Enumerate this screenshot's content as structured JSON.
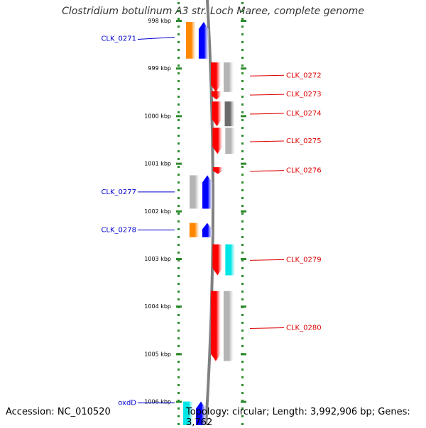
{
  "title": "Clostridium botulinum A3 str. Loch Maree, complete genome",
  "accession": "Accession: NC_010520",
  "summary": "Topology: circular; Length: 3,992,906 bp; Genes: 3,762",
  "colors": {
    "backbone": "#808080",
    "ticks": "#2e8b2e",
    "forward_label": "#0000cc",
    "reverse_label": "#dd0000",
    "red": "#ff0000",
    "blue": "#0000ff",
    "orange": "#ff8800",
    "cyan": "#00e5e5",
    "gray": "#b4b4b4",
    "darkgray": "#6b6b6b"
  },
  "scale_labels": [
    {
      "kbp": 998,
      "text": "998 kbp"
    },
    {
      "kbp": 999,
      "text": "999 kbp"
    },
    {
      "kbp": 1000,
      "text": "1000 kbp"
    },
    {
      "kbp": 1001,
      "text": "1001 kbp"
    },
    {
      "kbp": 1002,
      "text": "1002 kbp"
    },
    {
      "kbp": 1003,
      "text": "1003 kbp"
    },
    {
      "kbp": 1004,
      "text": "1004 kbp"
    },
    {
      "kbp": 1005,
      "text": "1005 kbp"
    },
    {
      "kbp": 1006,
      "text": "1006 kbp"
    }
  ],
  "forward_genes": [
    {
      "id": "CLK_0271",
      "start": 998.03,
      "end": 998.8,
      "cog": "orange",
      "pointer": 998.38
    },
    {
      "id": "CLK_0277",
      "start": 1001.25,
      "end": 1001.95,
      "cog": "gray",
      "pointer": 1001.6
    },
    {
      "id": "CLK_0278",
      "start": 1002.25,
      "end": 1002.55,
      "cog": "orange",
      "pointer": 1002.4
    },
    {
      "id": "oxdD",
      "start": 1006.0,
      "end": 1006.5,
      "cog": "cyan",
      "pointer": 1006.03
    }
  ],
  "reverse_genes": [
    {
      "id": "CLK_0272",
      "start": 998.88,
      "end": 999.5,
      "cog": "gray",
      "pointer": 999.15
    },
    {
      "id": "CLK_0273",
      "start": 999.48,
      "end": 999.66,
      "cog": "none",
      "pointer": 999.55
    },
    {
      "id": "CLK_0274",
      "start": 999.7,
      "end": 1000.22,
      "cog": "darkgray",
      "pointer": 999.95
    },
    {
      "id": "CLK_0275",
      "start": 1000.25,
      "end": 1000.8,
      "cog": "gray",
      "pointer": 1000.53
    },
    {
      "id": "CLK_0276",
      "start": 1001.08,
      "end": 1001.22,
      "cog": "none",
      "pointer": 1001.15
    },
    {
      "id": "CLK_0279",
      "start": 1002.7,
      "end": 1003.35,
      "cog": "cyan",
      "pointer": 1003.02
    },
    {
      "id": "CLK_0280",
      "start": 1003.68,
      "end": 1005.15,
      "cog": "gray",
      "pointer": 1004.45
    }
  ]
}
